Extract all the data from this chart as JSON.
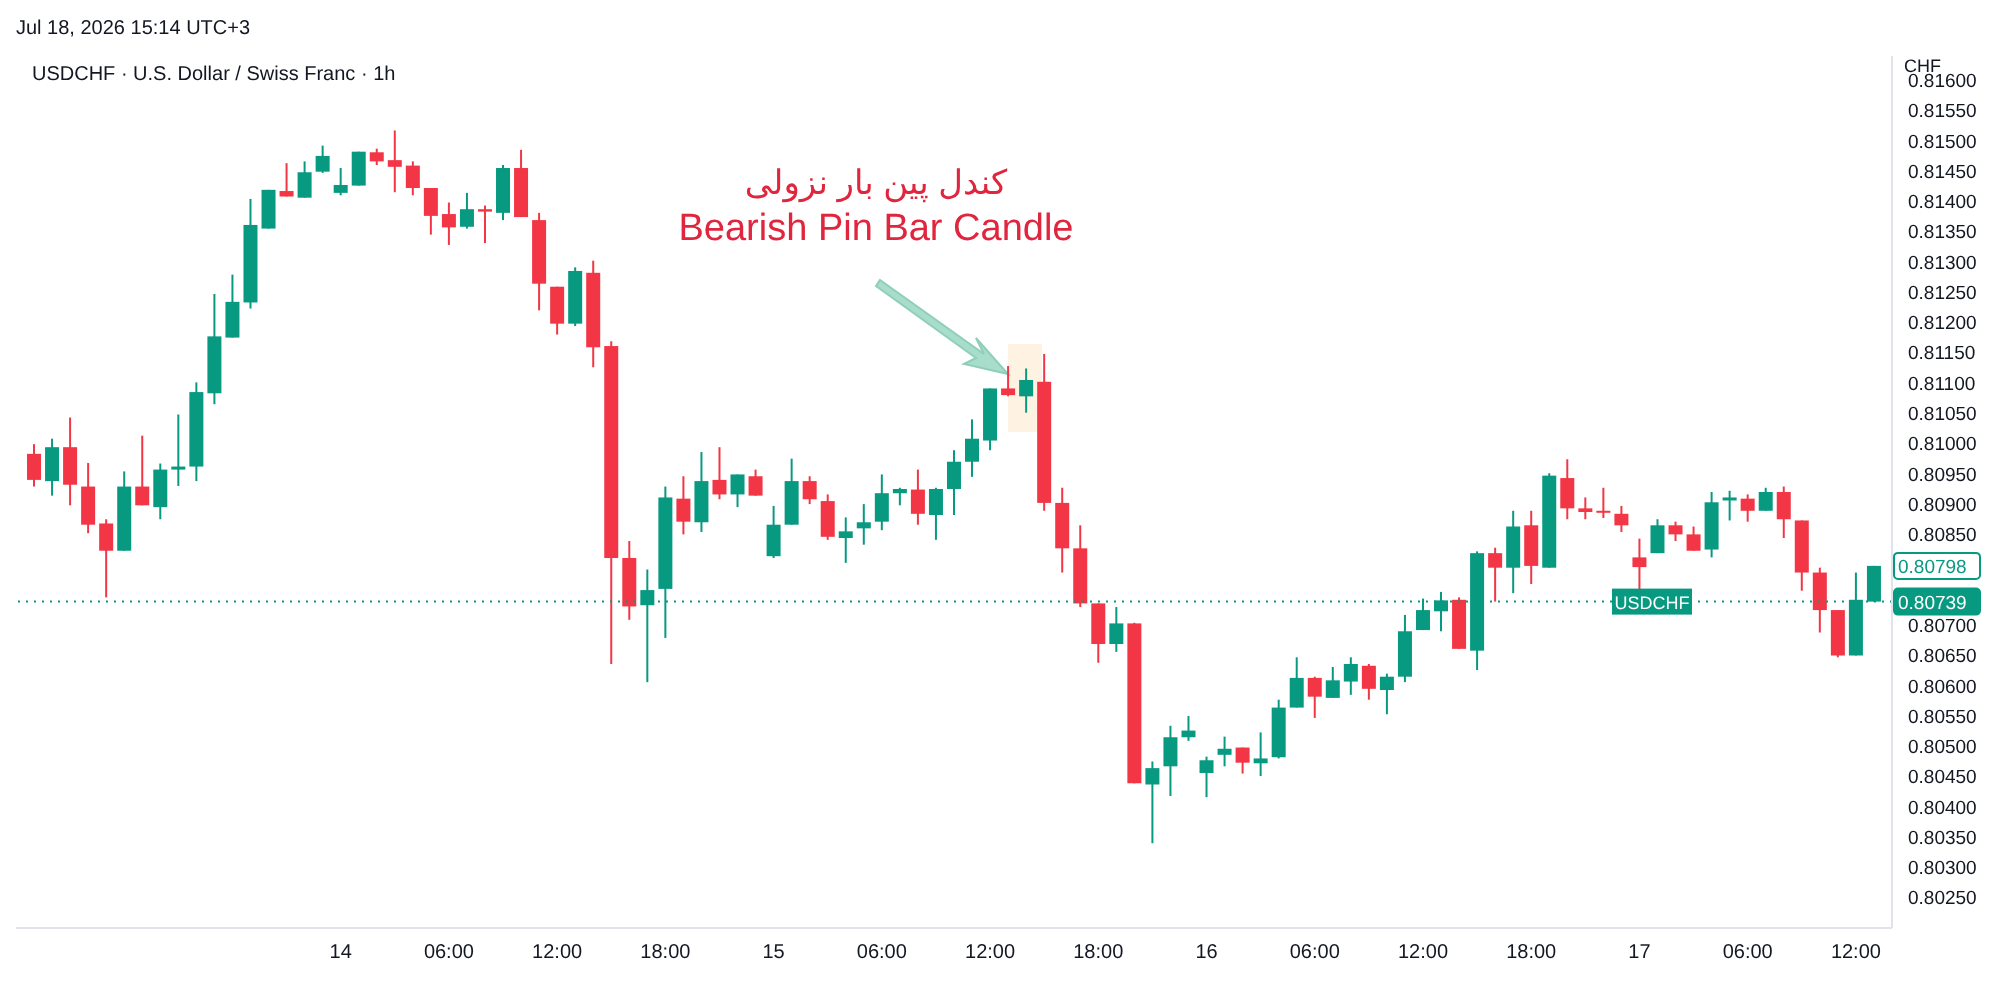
{
  "chart_data": {
    "type": "candlestick",
    "title": "USDCHF · U.S. Dollar / Swiss Franc · 1h",
    "subtitle": "Jul 18, 2026 15:14 UTC+3",
    "ylabel": "CHF",
    "annotations": [
      "کندل پین بار نزولی",
      "Bearish Pin Bar Candle",
      {
        "text": "0.80798",
        "x": "2026-07-17T13:00",
        "y": 0.80798
      },
      {
        "text": "0.80739",
        "x": "2026-07-17T13:00",
        "y": 0.80739
      }
    ],
    "x": [
      "2026-07-13T07:00",
      "2026-07-13T08:00",
      "2026-07-13T09:00",
      "2026-07-13T10:00",
      "2026-07-13T11:00",
      "2026-07-13T12:00",
      "2026-07-13T13:00",
      "2026-07-13T14:00",
      "2026-07-13T15:00",
      "2026-07-13T16:00",
      "2026-07-13T17:00",
      "2026-07-13T18:00",
      "2026-07-13T19:00",
      "2026-07-13T20:00",
      "2026-07-13T21:00",
      "2026-07-13T22:00",
      "2026-07-13T23:00",
      "2026-07-14T00:00",
      "2026-07-14T01:00",
      "2026-07-14T02:00",
      "2026-07-14T03:00",
      "2026-07-14T04:00",
      "2026-07-14T05:00",
      "2026-07-14T06:00",
      "2026-07-14T07:00",
      "2026-07-14T08:00",
      "2026-07-14T09:00",
      "2026-07-14T10:00",
      "2026-07-14T11:00",
      "2026-07-14T12:00",
      "2026-07-14T13:00",
      "2026-07-14T14:00",
      "2026-07-14T15:00",
      "2026-07-14T16:00",
      "2026-07-14T17:00",
      "2026-07-14T18:00",
      "2026-07-14T19:00",
      "2026-07-14T20:00",
      "2026-07-14T21:00",
      "2026-07-14T22:00",
      "2026-07-14T23:00",
      "2026-07-15T00:00",
      "2026-07-15T01:00",
      "2026-07-15T02:00",
      "2026-07-15T03:00",
      "2026-07-15T04:00",
      "2026-07-15T05:00",
      "2026-07-15T06:00",
      "2026-07-15T07:00",
      "2026-07-15T08:00",
      "2026-07-15T09:00",
      "2026-07-15T10:00",
      "2026-07-15T11:00",
      "2026-07-15T12:00",
      "2026-07-15T13:00",
      "2026-07-15T14:00",
      "2026-07-15T15:00",
      "2026-07-15T16:00",
      "2026-07-15T17:00",
      "2026-07-15T18:00",
      "2026-07-15T19:00",
      "2026-07-15T20:00",
      "2026-07-15T21:00",
      "2026-07-15T22:00",
      "2026-07-15T23:00",
      "2026-07-16T00:00",
      "2026-07-16T01:00",
      "2026-07-16T02:00",
      "2026-07-16T03:00",
      "2026-07-16T04:00",
      "2026-07-16T05:00",
      "2026-07-16T06:00",
      "2026-07-16T07:00",
      "2026-07-16T08:00",
      "2026-07-16T09:00",
      "2026-07-16T10:00",
      "2026-07-16T11:00",
      "2026-07-16T12:00",
      "2026-07-16T13:00",
      "2026-07-16T14:00",
      "2026-07-16T15:00",
      "2026-07-16T16:00",
      "2026-07-16T17:00",
      "2026-07-16T18:00",
      "2026-07-16T19:00",
      "2026-07-16T20:00",
      "2026-07-16T21:00",
      "2026-07-16T22:00",
      "2026-07-16T23:00",
      "2026-07-17T00:00",
      "2026-07-17T01:00",
      "2026-07-17T02:00",
      "2026-07-17T03:00",
      "2026-07-17T04:00",
      "2026-07-17T05:00",
      "2026-07-17T06:00",
      "2026-07-17T07:00",
      "2026-07-17T08:00",
      "2026-07-17T09:00",
      "2026-07-17T10:00",
      "2026-07-17T11:00",
      "2026-07-17T12:00",
      "2026-07-17T13:00"
    ],
    "ohlc": [
      [
        0.80983,
        0.80999,
        0.80929,
        0.8094
      ],
      [
        0.80938,
        0.81008,
        0.80914,
        0.80994
      ],
      [
        0.80994,
        0.81043,
        0.80898,
        0.80932
      ],
      [
        0.80929,
        0.80968,
        0.80852,
        0.80866
      ],
      [
        0.80868,
        0.80875,
        0.80746,
        0.80823
      ],
      [
        0.80823,
        0.80954,
        0.80823,
        0.80929
      ],
      [
        0.80929,
        0.81013,
        0.80898,
        0.80898
      ],
      [
        0.80895,
        0.80967,
        0.80875,
        0.80957
      ],
      [
        0.80957,
        0.81048,
        0.8093,
        0.80962
      ],
      [
        0.80962,
        0.81101,
        0.80938,
        0.81085
      ],
      [
        0.81083,
        0.81247,
        0.81065,
        0.81177
      ],
      [
        0.81175,
        0.81279,
        0.81175,
        0.81234
      ],
      [
        0.81233,
        0.81404,
        0.81223,
        0.81361
      ],
      [
        0.81355,
        0.81419,
        0.81355,
        0.81419
      ],
      [
        0.81417,
        0.81463,
        0.81408,
        0.81408
      ],
      [
        0.81406,
        0.81466,
        0.81406,
        0.81448
      ],
      [
        0.81449,
        0.81492,
        0.81447,
        0.81475
      ],
      [
        0.81414,
        0.81455,
        0.8141,
        0.81427
      ],
      [
        0.81426,
        0.81482,
        0.81426,
        0.81482
      ],
      [
        0.81481,
        0.81487,
        0.8146,
        0.81466
      ],
      [
        0.81468,
        0.81517,
        0.81415,
        0.81457
      ],
      [
        0.81459,
        0.81466,
        0.8141,
        0.81422
      ],
      [
        0.81422,
        0.81422,
        0.81345,
        0.81376
      ],
      [
        0.81379,
        0.81398,
        0.81328,
        0.81357
      ],
      [
        0.81358,
        0.81414,
        0.81355,
        0.81387
      ],
      [
        0.81387,
        0.81393,
        0.81331,
        0.81383
      ],
      [
        0.81381,
        0.8146,
        0.81369,
        0.81455
      ],
      [
        0.81455,
        0.81485,
        0.81374,
        0.81374
      ],
      [
        0.81369,
        0.81381,
        0.8122,
        0.81264
      ],
      [
        0.81259,
        0.81259,
        0.8118,
        0.81198
      ],
      [
        0.81198,
        0.81291,
        0.81194,
        0.81285
      ],
      [
        0.81282,
        0.81302,
        0.81126,
        0.81159
      ],
      [
        0.81161,
        0.81169,
        0.80636,
        0.80811
      ],
      [
        0.80811,
        0.80839,
        0.80709,
        0.80731
      ],
      [
        0.80733,
        0.80792,
        0.80606,
        0.80758
      ],
      [
        0.8076,
        0.80929,
        0.80679,
        0.80911
      ],
      [
        0.80909,
        0.80946,
        0.8085,
        0.80871
      ],
      [
        0.8087,
        0.80986,
        0.80854,
        0.80938
      ],
      [
        0.8094,
        0.80994,
        0.80908,
        0.80916
      ],
      [
        0.80916,
        0.80949,
        0.80895,
        0.80949
      ],
      [
        0.80946,
        0.80957,
        0.80914,
        0.80914
      ],
      [
        0.80814,
        0.80897,
        0.80811,
        0.80866
      ],
      [
        0.80866,
        0.80975,
        0.80866,
        0.80938
      ],
      [
        0.80938,
        0.80946,
        0.809,
        0.80908
      ],
      [
        0.80905,
        0.80916,
        0.80841,
        0.80846
      ],
      [
        0.80844,
        0.80878,
        0.80803,
        0.80855
      ],
      [
        0.8086,
        0.809,
        0.80833,
        0.8087
      ],
      [
        0.80871,
        0.80949,
        0.80857,
        0.80918
      ],
      [
        0.80918,
        0.80927,
        0.80898,
        0.80925
      ],
      [
        0.80924,
        0.80957,
        0.80866,
        0.80884
      ],
      [
        0.80882,
        0.80927,
        0.80841,
        0.80925
      ],
      [
        0.80925,
        0.80989,
        0.80882,
        0.8097
      ],
      [
        0.8097,
        0.8104,
        0.80945,
        0.81008
      ],
      [
        0.81005,
        0.81091,
        0.80989,
        0.81091
      ],
      [
        0.81091,
        0.81128,
        0.81078,
        0.8108
      ],
      [
        0.81078,
        0.81124,
        0.81051,
        0.81105
      ],
      [
        0.81102,
        0.81148,
        0.80889,
        0.80902
      ],
      [
        0.80902,
        0.80927,
        0.80787,
        0.80827
      ],
      [
        0.80827,
        0.80865,
        0.8073,
        0.80736
      ],
      [
        0.80736,
        0.80736,
        0.80638,
        0.80669
      ],
      [
        0.80669,
        0.8073,
        0.80656,
        0.80703
      ],
      [
        0.80703,
        0.80704,
        0.80439,
        0.80439
      ],
      [
        0.80437,
        0.80475,
        0.8034,
        0.80464
      ],
      [
        0.80467,
        0.80534,
        0.80418,
        0.80515
      ],
      [
        0.80515,
        0.8055,
        0.80509,
        0.80526
      ],
      [
        0.80456,
        0.80483,
        0.80416,
        0.80477
      ],
      [
        0.80486,
        0.80516,
        0.80467,
        0.80496
      ],
      [
        0.80498,
        0.80498,
        0.80455,
        0.80473
      ],
      [
        0.80472,
        0.80523,
        0.80451,
        0.8048
      ],
      [
        0.80482,
        0.80577,
        0.8048,
        0.80564
      ],
      [
        0.80564,
        0.80647,
        0.80564,
        0.80613
      ],
      [
        0.80613,
        0.80615,
        0.80547,
        0.80582
      ],
      [
        0.8058,
        0.80631,
        0.8058,
        0.80609
      ],
      [
        0.80607,
        0.80647,
        0.80585,
        0.80636
      ],
      [
        0.80633,
        0.80636,
        0.80577,
        0.80595
      ],
      [
        0.80593,
        0.8062,
        0.80553,
        0.80615
      ],
      [
        0.80615,
        0.80717,
        0.80606,
        0.8069
      ],
      [
        0.80692,
        0.80744,
        0.80692,
        0.80725
      ],
      [
        0.80723,
        0.80755,
        0.8069,
        0.80741
      ],
      [
        0.80742,
        0.80746,
        0.80661,
        0.80661
      ],
      [
        0.80658,
        0.80822,
        0.80626,
        0.80819
      ],
      [
        0.80819,
        0.80828,
        0.80739,
        0.80795
      ],
      [
        0.80795,
        0.80889,
        0.80753,
        0.80863
      ],
      [
        0.80865,
        0.80889,
        0.80768,
        0.80798
      ],
      [
        0.80795,
        0.80951,
        0.80795,
        0.80947
      ],
      [
        0.80943,
        0.80974,
        0.80875,
        0.80893
      ],
      [
        0.80893,
        0.80911,
        0.80875,
        0.80887
      ],
      [
        0.80889,
        0.80927,
        0.80877,
        0.80886
      ],
      [
        0.80884,
        0.80897,
        0.80854,
        0.80865
      ],
      [
        0.80812,
        0.80843,
        0.80755,
        0.80796
      ],
      [
        0.80819,
        0.80875,
        0.80819,
        0.80865
      ],
      [
        0.80865,
        0.80871,
        0.80839,
        0.8085
      ],
      [
        0.8085,
        0.80863,
        0.80823,
        0.80823
      ],
      [
        0.80825,
        0.8092,
        0.80812,
        0.80903
      ],
      [
        0.80906,
        0.80922,
        0.80873,
        0.80911
      ],
      [
        0.80909,
        0.80916,
        0.80871,
        0.80889
      ],
      [
        0.80889,
        0.80927,
        0.80889,
        0.8092
      ],
      [
        0.8092,
        0.80929,
        0.80844,
        0.80875
      ],
      [
        0.80873,
        0.80873,
        0.80757,
        0.80787
      ],
      [
        0.80787,
        0.80795,
        0.80688,
        0.80725
      ],
      [
        0.80725,
        0.80725,
        0.80647,
        0.8065
      ],
      [
        0.8065,
        0.80787,
        0.8065,
        0.80742
      ],
      [
        0.80739,
        0.80798,
        0.80739,
        0.80798
      ]
    ],
    "colors": [
      "#f23645",
      "#089981",
      "#f23645",
      "#f23645",
      "#f23645",
      "#089981",
      "#f23645",
      "#089981",
      "#089981",
      "#089981",
      "#089981",
      "#089981",
      "#089981",
      "#089981",
      "#f23645",
      "#089981",
      "#089981",
      "#089981",
      "#089981",
      "#f23645",
      "#f23645",
      "#f23645",
      "#f23645",
      "#f23645",
      "#089981",
      "#f23645",
      "#089981",
      "#f23645",
      "#f23645",
      "#f23645",
      "#089981",
      "#f23645",
      "#f23645",
      "#f23645",
      "#089981",
      "#089981",
      "#f23645",
      "#089981",
      "#f23645",
      "#089981",
      "#f23645",
      "#089981",
      "#089981",
      "#f23645",
      "#f23645",
      "#089981",
      "#089981",
      "#089981",
      "#089981",
      "#f23645",
      "#089981",
      "#089981",
      "#089981",
      "#089981",
      "#f23645",
      "#089981",
      "#f23645",
      "#f23645",
      "#f23645",
      "#f23645",
      "#089981",
      "#f23645",
      "#089981",
      "#089981",
      "#089981",
      "#089981",
      "#089981",
      "#f23645",
      "#089981",
      "#089981",
      "#089981",
      "#f23645",
      "#089981",
      "#089981",
      "#f23645",
      "#089981",
      "#089981",
      "#089981",
      "#089981",
      "#f23645",
      "#089981",
      "#f23645",
      "#089981",
      "#f23645",
      "#089981",
      "#f23645",
      "#f23645",
      "#f23645",
      "#f23645",
      "#f23645",
      "#089981",
      "#f23645",
      "#f23645",
      "#089981",
      "#089981",
      "#f23645",
      "#089981",
      "#f23645",
      "#f23645",
      "#f23645",
      "#f23645",
      "#089981",
      "#089981"
    ],
    "xlim": [
      "2026-07-13T06:00",
      "2026-07-17T14:00"
    ],
    "xticks": [
      {
        "value": "2026-07-14T00:00",
        "label": "14"
      },
      {
        "value": "2026-07-14T06:00",
        "label": "06:00"
      },
      {
        "value": "2026-07-14T12:00",
        "label": "12:00"
      },
      {
        "value": "2026-07-14T18:00",
        "label": "18:00"
      },
      {
        "value": "2026-07-15T00:00",
        "label": "15"
      },
      {
        "value": "2026-07-15T06:00",
        "label": "06:00"
      },
      {
        "value": "2026-07-15T12:00",
        "label": "12:00"
      },
      {
        "value": "2026-07-15T18:00",
        "label": "18:00"
      },
      {
        "value": "2026-07-16T00:00",
        "label": "16"
      },
      {
        "value": "2026-07-16T06:00",
        "label": "06:00"
      },
      {
        "value": "2026-07-16T12:00",
        "label": "12:00"
      },
      {
        "value": "2026-07-16T18:00",
        "label": "18:00"
      },
      {
        "value": "2026-07-17T00:00",
        "label": "17"
      },
      {
        "value": "2026-07-17T06:00",
        "label": "06:00"
      },
      {
        "value": "2026-07-17T12:00",
        "label": "12:00"
      }
    ],
    "ylim": [
      0.802,
      0.8164
    ],
    "yticks": [
      {
        "value": 0.8025,
        "label": "0.80250"
      },
      {
        "value": 0.803,
        "label": "0.80300"
      },
      {
        "value": 0.8035,
        "label": "0.80350"
      },
      {
        "value": 0.804,
        "label": "0.80400"
      },
      {
        "value": 0.8045,
        "label": "0.80450"
      },
      {
        "value": 0.805,
        "label": "0.80500"
      },
      {
        "value": 0.8055,
        "label": "0.80550"
      },
      {
        "value": 0.806,
        "label": "0.80600"
      },
      {
        "value": 0.8065,
        "label": "0.80650"
      },
      {
        "value": 0.807,
        "label": "0.80700"
      },
      {
        "value": 0.8085,
        "label": "0.80850"
      },
      {
        "value": 0.809,
        "label": "0.80900"
      },
      {
        "value": 0.8095,
        "label": "0.80950"
      },
      {
        "value": 0.81,
        "label": "0.81000"
      },
      {
        "value": 0.8105,
        "label": "0.81050"
      },
      {
        "value": 0.811,
        "label": "0.81100"
      },
      {
        "value": 0.8115,
        "label": "0.81150"
      },
      {
        "value": 0.812,
        "label": "0.81200"
      },
      {
        "value": 0.8125,
        "label": "0.81250"
      },
      {
        "value": 0.813,
        "label": "0.81300"
      },
      {
        "value": 0.8135,
        "label": "0.81350"
      },
      {
        "value": 0.814,
        "label": "0.81400"
      },
      {
        "value": 0.8145,
        "label": "0.81450"
      },
      {
        "value": 0.815,
        "label": "0.81500"
      },
      {
        "value": 0.8155,
        "label": "0.81550"
      },
      {
        "value": 0.816,
        "label": "0.81600"
      }
    ],
    "ref_lines": [
      {
        "axis": "y",
        "value": 0.80739,
        "label": "USDCHF",
        "color": "#089981",
        "line_style": "dotted"
      }
    ]
  }
}
